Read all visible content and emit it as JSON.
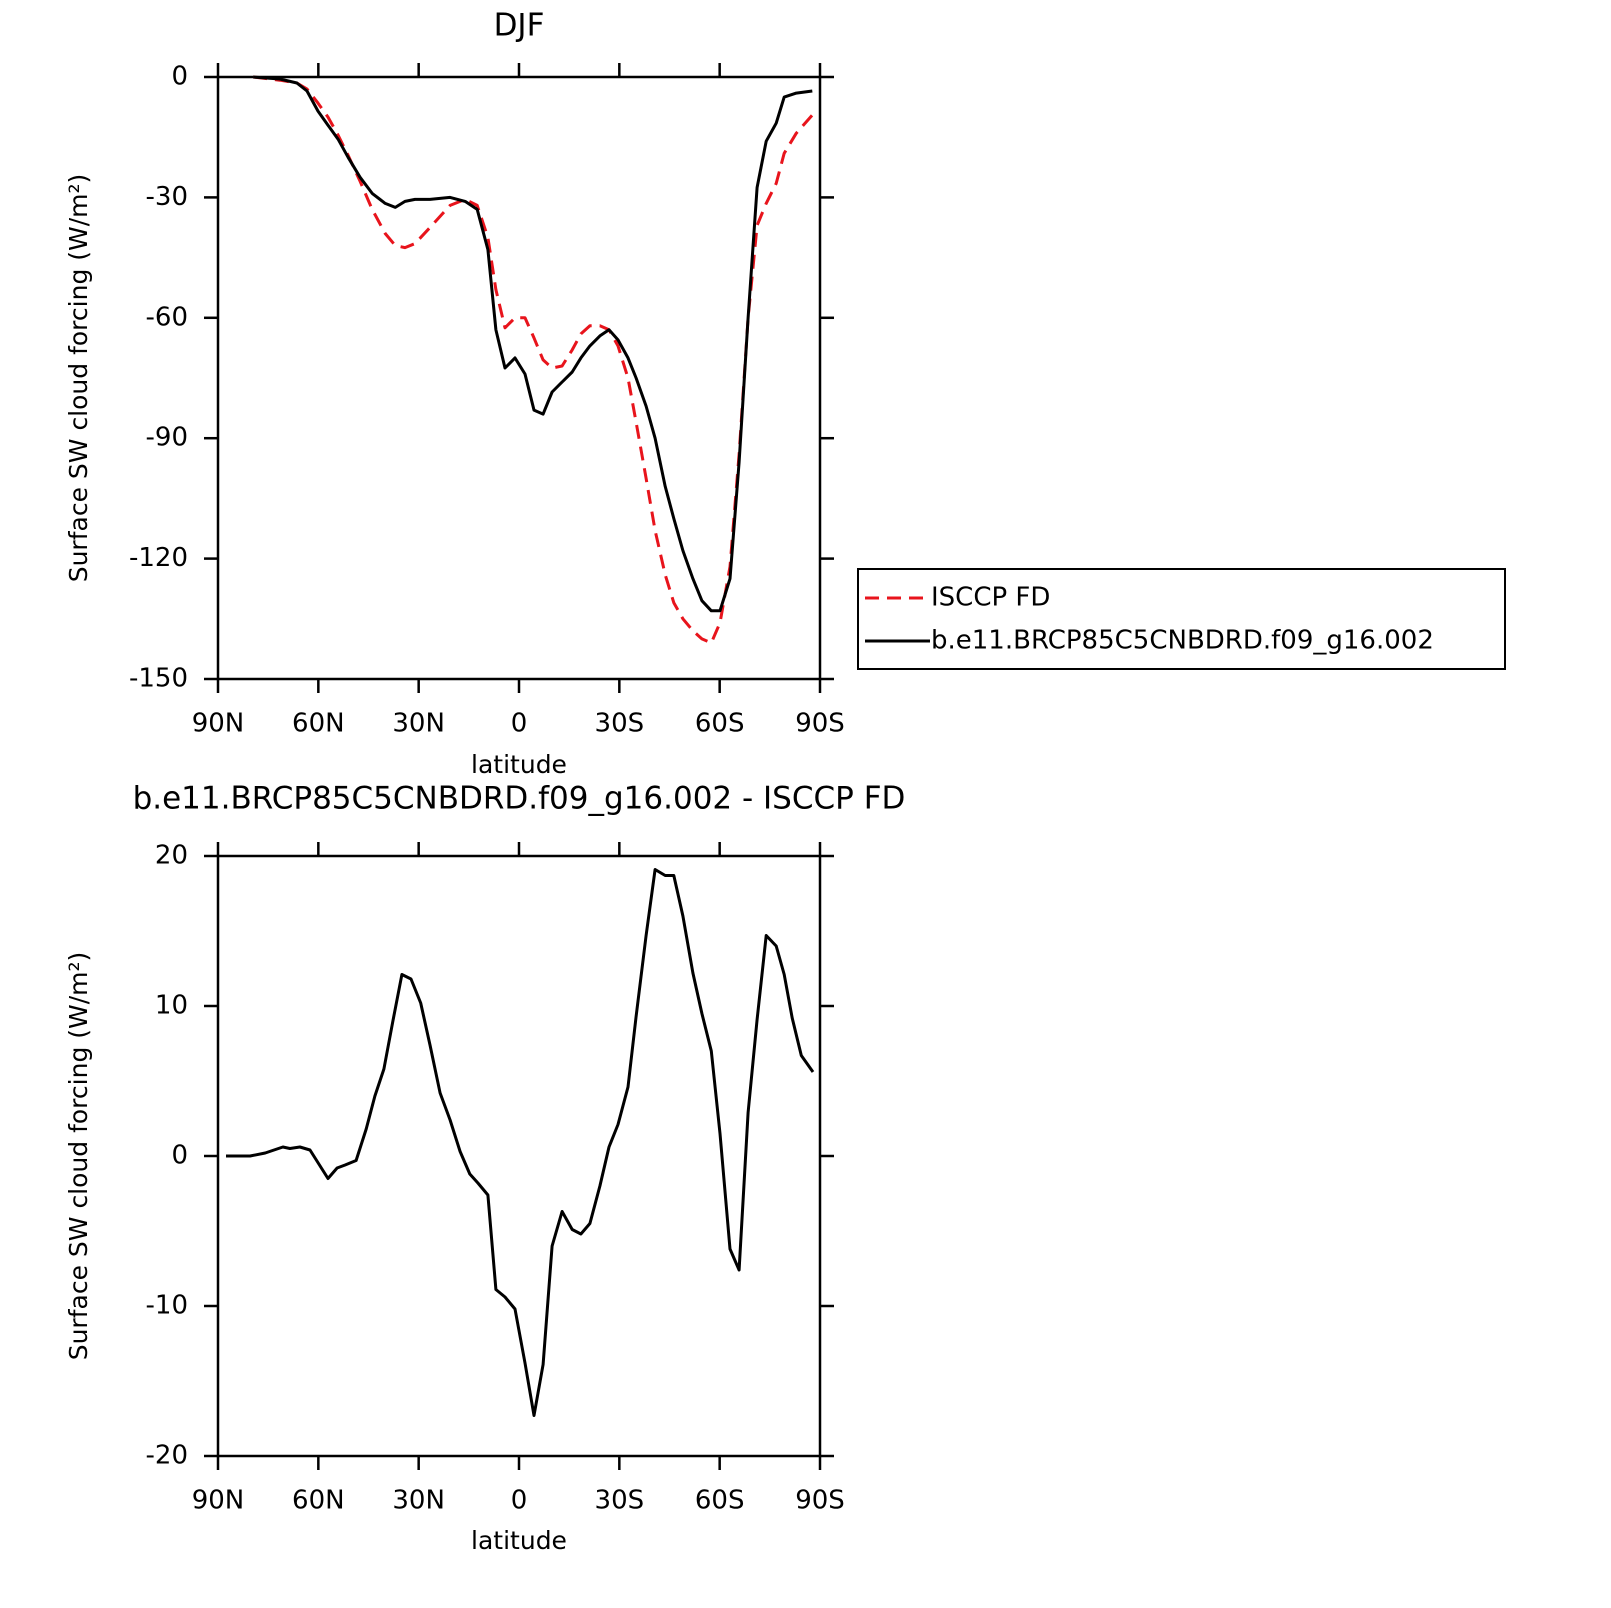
{
  "chart_data": [
    {
      "type": "line",
      "title": "DJF",
      "x_label": "latitude",
      "y_label": "Surface SW cloud forcing (W/m²)",
      "x": [
        79.5,
        71.5,
        66.4,
        63.4,
        60.1,
        57.1,
        54.1,
        51.1,
        47.5,
        43.9,
        40.0,
        37.0,
        34.1,
        31.1,
        26.6,
        20.6,
        16.1,
        12.5,
        9.3,
        6.9,
        4.2,
        1.2,
        -1.8,
        -4.5,
        -7.2,
        -9.9,
        -12.9,
        -15.9,
        -18.5,
        -21.2,
        -24.2,
        -26.9,
        -29.6,
        -32.6,
        -35.0,
        -38.0,
        -40.7,
        -43.7,
        -46.3,
        -49.0,
        -52.0,
        -54.7,
        -57.5,
        -60.1,
        -63.1,
        -65.8,
        -68.5,
        -71.2,
        -73.9,
        -76.9,
        -79.3,
        -82.9,
        -87.7
      ],
      "series": [
        {
          "name": "ISCCP FD",
          "color": "#e8141c",
          "style": "dashed",
          "values": [
            0,
            -0.8,
            -1.5,
            -3,
            -6.5,
            -10,
            -14.5,
            -19.5,
            -26,
            -33,
            -39,
            -42,
            -42.5,
            -41.5,
            -37.5,
            -32,
            -30.5,
            -32,
            -40,
            -53,
            -62.5,
            -60,
            -60,
            -65,
            -70.5,
            -72.5,
            -72,
            -68,
            -64,
            -62,
            -62,
            -63,
            -67,
            -75,
            -86,
            -100,
            -113,
            -124,
            -131,
            -135,
            -138,
            -140,
            -141,
            -136,
            -122,
            -94,
            -60,
            -37,
            -31.5,
            -26.5,
            -19,
            -14,
            -9.5
          ]
        },
        {
          "name": "b.e11.BRCP85C5CNBDRD.f09_g16.002",
          "color": "#000000",
          "style": "solid",
          "values": [
            0,
            -0.5,
            -1.5,
            -3.5,
            -8.5,
            -12,
            -15.5,
            -20,
            -25,
            -29,
            -31.5,
            -32.5,
            -31,
            -30.5,
            -30.5,
            -30,
            -31,
            -33,
            -43,
            -63,
            -72.5,
            -70,
            -74,
            -83,
            -84,
            -78.5,
            -76,
            -73.5,
            -70,
            -67,
            -64.5,
            -63,
            -65.5,
            -70,
            -75,
            -82,
            -90,
            -102,
            -110,
            -118,
            -125,
            -130.5,
            -133,
            -133,
            -125,
            -96,
            -60,
            -27.5,
            -16,
            -11.5,
            -5,
            -4,
            -3.5
          ]
        }
      ],
      "xlim": [
        90,
        -90
      ],
      "xticks": [
        {
          "value": 90,
          "label": "90N"
        },
        {
          "value": 60,
          "label": "60N"
        },
        {
          "value": 30,
          "label": "30N"
        },
        0,
        {
          "value": -30,
          "label": "30S"
        },
        {
          "value": -60,
          "label": "60S"
        },
        {
          "value": -90,
          "label": "90S"
        }
      ],
      "ylim": [
        -150,
        0
      ],
      "yticks": [
        0,
        -30,
        -60,
        -90,
        -120,
        -150
      ],
      "legend": "outside-right"
    },
    {
      "type": "line",
      "title": "b.e11.BRCP85C5CNBDRD.f09_g16.002 - ISCCP FD",
      "x_label": "latitude",
      "y_label": "Surface SW cloud forcing (W/m²)",
      "x": [
        87.6,
        80.4,
        75.9,
        70.6,
        68.5,
        65.5,
        62.5,
        57.1,
        54.4,
        52.0,
        48.7,
        45.7,
        43.1,
        40.4,
        37.7,
        35.0,
        32.3,
        29.4,
        26.6,
        23.6,
        20.6,
        17.6,
        14.7,
        12.3,
        9.3,
        6.9,
        4.2,
        1.2,
        -1.8,
        -4.5,
        -7.2,
        -9.9,
        -12.9,
        -15.9,
        -18.5,
        -21.2,
        -24.2,
        -26.9,
        -29.6,
        -32.6,
        -35.0,
        -38.0,
        -40.7,
        -43.7,
        -46.3,
        -49.0,
        -52.0,
        -54.7,
        -57.5,
        -60.1,
        -63.1,
        -65.8,
        -68.5,
        -71.2,
        -73.9,
        -76.9,
        -79.3,
        -81.7,
        -84.4,
        -87.9
      ],
      "color": "#000000",
      "values": [
        0,
        0,
        0.2,
        0.6,
        0.5,
        0.6,
        0.4,
        -1.5,
        -0.8,
        -0.6,
        -0.3,
        1.8,
        4,
        5.8,
        9,
        12.1,
        11.8,
        10.2,
        7.4,
        4.2,
        2.4,
        0.3,
        -1.2,
        -1.8,
        -2.6,
        -8.9,
        -9.4,
        -10.2,
        -13.8,
        -17.3,
        -13.9,
        -6,
        -3.7,
        -4.9,
        -5.2,
        -4.5,
        -2,
        0.6,
        2.1,
        4.6,
        9.3,
        14.7,
        19.1,
        18.7,
        18.7,
        16,
        12.2,
        9.5,
        7,
        1.5,
        -6.2,
        -7.6,
        2.9,
        9.1,
        14.7,
        14,
        12.1,
        9.2,
        6.7,
        5.6
      ],
      "xlim": [
        90,
        -90
      ],
      "xticks": [
        {
          "value": 90,
          "label": "90N"
        },
        {
          "value": 60,
          "label": "60N"
        },
        {
          "value": 30,
          "label": "30N"
        },
        0,
        {
          "value": -30,
          "label": "30S"
        },
        {
          "value": -60,
          "label": "60S"
        },
        {
          "value": -90,
          "label": "90S"
        }
      ],
      "ylim": [
        -20,
        20
      ],
      "yticks": [
        20,
        10,
        0,
        -10,
        -20
      ]
    }
  ]
}
